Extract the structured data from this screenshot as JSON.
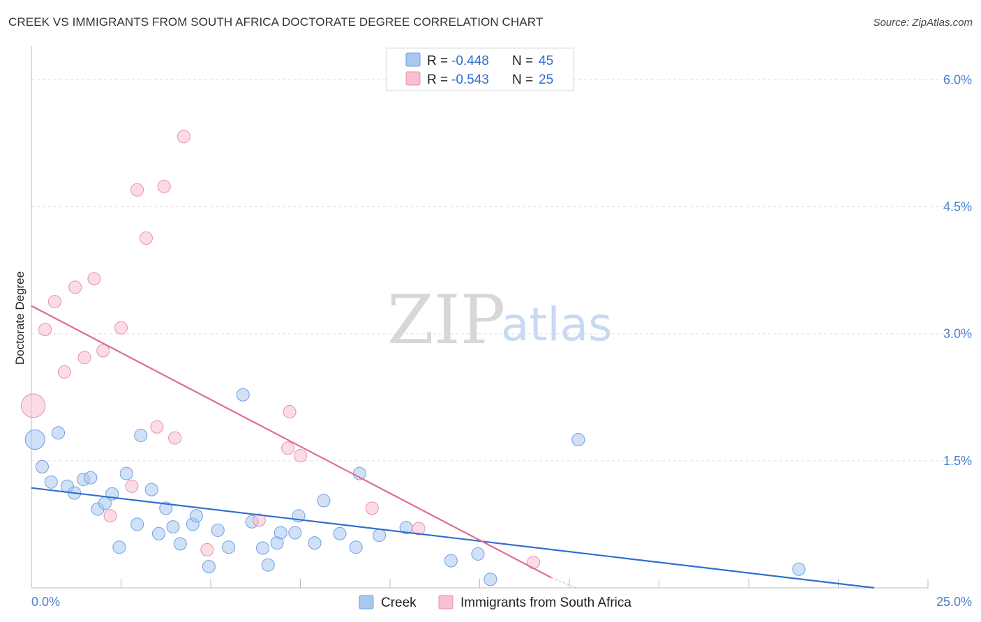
{
  "title": "CREEK VS IMMIGRANTS FROM SOUTH AFRICA DOCTORATE DEGREE CORRELATION CHART",
  "source": "Source: ZipAtlas.com",
  "watermark": {
    "zip": "ZIP",
    "atlas": "atlas"
  },
  "legend_top": [
    {
      "r_label": "R = ",
      "r_value": "-0.448",
      "n_label": "N = ",
      "n_value": "45",
      "color": "#a9c8f0",
      "stroke": "#6d9fe0"
    },
    {
      "r_label": "R = ",
      "r_value": "-0.543",
      "n_label": "N = ",
      "n_value": "25",
      "color": "#f8c0d0",
      "stroke": "#e890aa"
    }
  ],
  "legend_bottom": [
    {
      "label": "Creek",
      "color": "#a9c8f0"
    },
    {
      "label": "Immigrants from South Africa",
      "color": "#f8c0d0"
    }
  ],
  "chart_data": {
    "type": "scatter",
    "title": "CREEK VS IMMIGRANTS FROM SOUTH AFRICA DOCTORATE DEGREE CORRELATION CHART",
    "xlabel": "",
    "ylabel": "Doctorate Degree",
    "xlim": [
      0,
      25
    ],
    "ylim": [
      0,
      6.3
    ],
    "x_tick_labels": [
      "0.0%",
      "25.0%"
    ],
    "y_ticks": [
      1.5,
      3.0,
      4.5,
      6.0
    ],
    "y_tick_labels": [
      "1.5%",
      "3.0%",
      "4.5%",
      "6.0%"
    ],
    "grid": true,
    "series": [
      {
        "name": "Creek",
        "color": "#a9c8f0",
        "stroke": "#6d9fe0",
        "line_color": "#2f6fd0",
        "trend": [
          [
            0,
            1.18
          ],
          [
            23.5,
            0.0
          ]
        ],
        "points": [
          [
            0.1,
            1.75,
            26
          ],
          [
            0.75,
            1.83,
            16
          ],
          [
            0.3,
            1.43,
            16
          ],
          [
            0.55,
            1.25,
            16
          ],
          [
            1.0,
            1.2,
            16
          ],
          [
            1.2,
            1.12,
            16
          ],
          [
            1.45,
            1.28,
            16
          ],
          [
            1.65,
            1.3,
            16
          ],
          [
            1.85,
            0.93,
            16
          ],
          [
            2.05,
            1.0,
            16
          ],
          [
            2.25,
            1.11,
            16
          ],
          [
            2.45,
            0.48,
            16
          ],
          [
            2.65,
            1.35,
            16
          ],
          [
            2.95,
            0.75,
            16
          ],
          [
            3.05,
            1.8,
            16
          ],
          [
            3.35,
            1.16,
            16
          ],
          [
            3.55,
            0.64,
            16
          ],
          [
            3.75,
            0.94,
            16
          ],
          [
            3.95,
            0.72,
            16
          ],
          [
            4.15,
            0.52,
            16
          ],
          [
            4.5,
            0.75,
            16
          ],
          [
            4.6,
            0.85,
            16
          ],
          [
            4.95,
            0.25,
            16
          ],
          [
            5.2,
            0.68,
            16
          ],
          [
            5.5,
            0.48,
            16
          ],
          [
            5.9,
            2.28,
            16
          ],
          [
            6.15,
            0.78,
            16
          ],
          [
            6.45,
            0.47,
            16
          ],
          [
            6.6,
            0.27,
            16
          ],
          [
            6.85,
            0.53,
            16
          ],
          [
            6.95,
            0.65,
            16
          ],
          [
            7.35,
            0.65,
            16
          ],
          [
            7.45,
            0.85,
            16
          ],
          [
            7.9,
            0.53,
            16
          ],
          [
            8.15,
            1.03,
            16
          ],
          [
            8.6,
            0.64,
            16
          ],
          [
            9.05,
            0.48,
            16
          ],
          [
            9.15,
            1.35,
            16
          ],
          [
            9.7,
            0.62,
            16
          ],
          [
            10.45,
            0.71,
            16
          ],
          [
            11.7,
            0.32,
            16
          ],
          [
            12.45,
            0.4,
            16
          ],
          [
            12.8,
            0.1,
            16
          ],
          [
            15.25,
            1.75,
            16
          ],
          [
            21.4,
            0.22,
            16
          ]
        ]
      },
      {
        "name": "Immigrants from South Africa",
        "color": "#f8c0d0",
        "stroke": "#e890aa",
        "line_color": "#e06c94",
        "trend": [
          [
            0,
            3.33
          ],
          [
            14.5,
            0.12
          ]
        ],
        "trend_dashed_end": [
          15.2,
          0.0
        ],
        "points": [
          [
            0.05,
            2.15,
            32
          ],
          [
            0.38,
            3.05,
            16
          ],
          [
            0.65,
            3.38,
            16
          ],
          [
            0.92,
            2.55,
            16
          ],
          [
            1.22,
            3.55,
            16
          ],
          [
            1.48,
            2.72,
            16
          ],
          [
            1.75,
            3.65,
            16
          ],
          [
            2.0,
            2.8,
            16
          ],
          [
            2.2,
            0.85,
            16
          ],
          [
            2.5,
            3.07,
            16
          ],
          [
            2.8,
            1.2,
            16
          ],
          [
            2.95,
            4.7,
            16
          ],
          [
            3.2,
            4.13,
            16
          ],
          [
            3.5,
            1.9,
            16
          ],
          [
            3.7,
            4.74,
            16
          ],
          [
            4.0,
            1.77,
            16
          ],
          [
            4.25,
            5.33,
            16
          ],
          [
            4.9,
            0.45,
            16
          ],
          [
            6.35,
            0.8,
            16
          ],
          [
            7.15,
            1.65,
            16
          ],
          [
            7.2,
            2.08,
            16
          ],
          [
            7.5,
            1.56,
            16
          ],
          [
            9.5,
            0.94,
            16
          ],
          [
            10.8,
            0.7,
            16
          ],
          [
            14.0,
            0.3,
            16
          ]
        ]
      }
    ]
  }
}
